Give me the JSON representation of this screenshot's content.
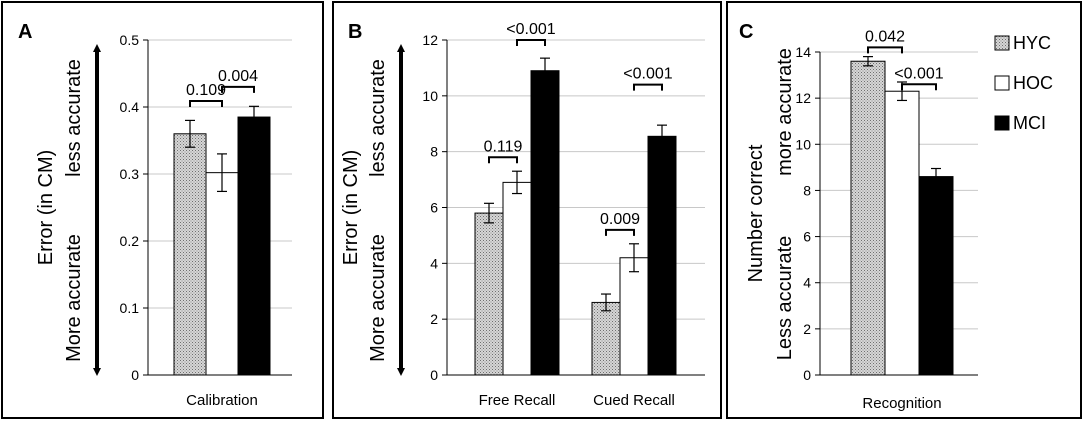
{
  "figure": {
    "legend": [
      {
        "name": "HYC",
        "fill": "pattern"
      },
      {
        "name": "HOC",
        "fill": "#ffffff"
      },
      {
        "name": "MCI",
        "fill": "#000000"
      }
    ],
    "colors": {
      "bar_edge": "#000000",
      "grid": "#c8c8c8",
      "panel_border": "#000000"
    }
  },
  "chart_data": [
    {
      "panel_letter": "A",
      "type": "bar",
      "categories": [
        "Calibration"
      ],
      "series": [
        {
          "name": "HYC",
          "values": [
            0.36
          ],
          "errors": [
            0.02
          ]
        },
        {
          "name": "HOC",
          "values": [
            0.302
          ],
          "errors": [
            0.028
          ]
        },
        {
          "name": "MCI",
          "values": [
            0.385
          ],
          "errors": [
            0.016
          ]
        }
      ],
      "ylim": [
        0,
        0.5
      ],
      "yticks": [
        "0",
        "0.1",
        "0.2",
        "0.3",
        "0.4",
        "0.5"
      ],
      "ylabel": "Error (in CM)",
      "arrow_top_label": "less accurate",
      "arrow_bottom_label": "More accurate",
      "grid": true,
      "annotations": [
        {
          "text": "0.109",
          "category": 0,
          "from": 0,
          "to": 1,
          "y": 0.409
        },
        {
          "text": "0.004",
          "category": 0,
          "from": 1,
          "to": 2,
          "y": 0.43
        }
      ]
    },
    {
      "panel_letter": "B",
      "type": "bar",
      "categories": [
        "Free Recall",
        "Cued Recall"
      ],
      "series": [
        {
          "name": "HYC",
          "values": [
            5.8,
            2.6
          ],
          "errors": [
            0.35,
            0.3
          ]
        },
        {
          "name": "HOC",
          "values": [
            6.9,
            4.2
          ],
          "errors": [
            0.4,
            0.5
          ]
        },
        {
          "name": "MCI",
          "values": [
            10.9,
            8.55
          ],
          "errors": [
            0.45,
            0.4
          ]
        }
      ],
      "ylim": [
        0,
        12
      ],
      "yticks": [
        "0",
        "2",
        "4",
        "6",
        "8",
        "10",
        "12"
      ],
      "ylabel": "Error (in CM)",
      "arrow_top_label": "less accurate",
      "arrow_bottom_label": "More accurate",
      "grid": true,
      "annotations": [
        {
          "text": "0.119",
          "category": 0,
          "from": 0,
          "to": 1,
          "y": 7.8
        },
        {
          "text": "<0.001",
          "category": 0,
          "from": 1,
          "to": 2,
          "y": 12.0
        },
        {
          "text": "0.009",
          "category": 1,
          "from": 0,
          "to": 1,
          "y": 5.2
        },
        {
          "text": "<0.001",
          "category": 1,
          "from": 1,
          "to": 2,
          "y": 10.4
        }
      ]
    },
    {
      "panel_letter": "C",
      "type": "bar",
      "categories": [
        "Recognition"
      ],
      "series": [
        {
          "name": "HYC",
          "values": [
            13.6
          ],
          "errors": [
            0.2
          ]
        },
        {
          "name": "HOC",
          "values": [
            12.3
          ],
          "errors": [
            0.4
          ]
        },
        {
          "name": "MCI",
          "values": [
            8.6
          ],
          "errors": [
            0.35
          ]
        }
      ],
      "ylim": [
        0,
        14
      ],
      "yticks": [
        "0",
        "2",
        "4",
        "6",
        "8",
        "10",
        "12",
        "14"
      ],
      "ylabel": "Number correct",
      "arrow_top_label": "more accurate",
      "arrow_bottom_label": "Less accurate",
      "grid": true,
      "annotations": [
        {
          "text": "0.042",
          "category": 0,
          "from": 0,
          "to": 1,
          "y": 14.2
        },
        {
          "text": "<0.001",
          "category": 0,
          "from": 1,
          "to": 2,
          "y": 12.6
        }
      ]
    }
  ]
}
